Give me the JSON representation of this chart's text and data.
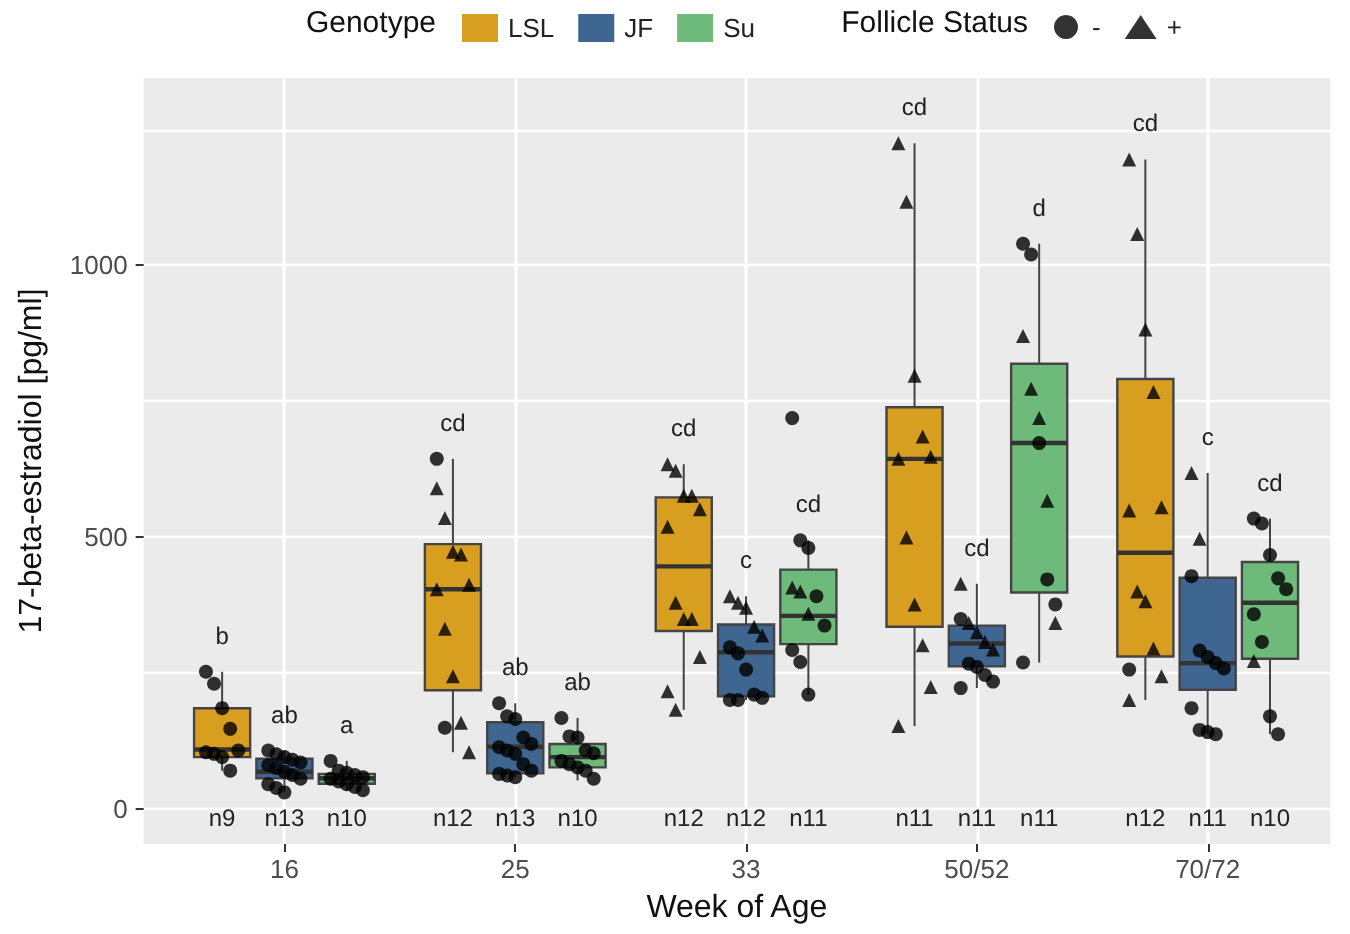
{
  "chart_data": {
    "type": "box",
    "xlabel": "Week of Age",
    "ylabel": "17-beta-estradiol [pg/ml]",
    "legend_title": [
      "Genotype",
      "Follicle Status"
    ],
    "legend": "top",
    "grid": true,
    "categories": [
      "16",
      "25",
      "33",
      "50/52",
      "70/72"
    ],
    "ylim": [
      -65,
      1345
    ],
    "yticks": [
      0,
      {
        "value": 250,
        "label": null
      },
      500,
      {
        "value": 750,
        "label": null
      },
      1000,
      {
        "value": 1250,
        "label": null
      }
    ],
    "series": [
      {
        "name": "LSL",
        "color": "#d89e20",
        "boxes": [
          {
            "low": 70,
            "q1": 95,
            "median": 109,
            "q3": 185,
            "high": 252
          },
          {
            "low": 104,
            "q1": 218,
            "median": 404,
            "q3": 487,
            "high": 644
          },
          {
            "low": 182,
            "q1": 327,
            "median": 446,
            "q3": 573,
            "high": 634
          },
          {
            "low": 152,
            "q1": 335,
            "median": 644,
            "q3": 739,
            "high": 1225
          },
          {
            "low": 200,
            "q1": 280,
            "median": 471,
            "q3": 791,
            "high": 1195
          }
        ]
      },
      {
        "name": "JF",
        "color": "#3f6591",
        "boxes": [
          {
            "low": 30,
            "q1": 56,
            "median": 68,
            "q3": 92,
            "high": 107
          },
          {
            "low": 58,
            "q1": 65,
            "median": 114,
            "q3": 159,
            "high": 194
          },
          {
            "low": 200,
            "q1": 207,
            "median": 288,
            "q3": 339,
            "high": 391
          },
          {
            "low": 222,
            "q1": 262,
            "median": 304,
            "q3": 337,
            "high": 414
          },
          {
            "low": 137,
            "q1": 219,
            "median": 268,
            "q3": 425,
            "high": 618
          }
        ]
      },
      {
        "name": "Su",
        "color": "#6dba7a",
        "boxes": [
          {
            "low": 34,
            "q1": 46,
            "median": 56,
            "q3": 64,
            "high": 88
          },
          {
            "low": 52,
            "q1": 76,
            "median": 95,
            "q3": 119,
            "high": 167
          },
          {
            "low": 210,
            "q1": 303,
            "median": 355,
            "q3": 440,
            "high": 494
          },
          {
            "low": 269,
            "q1": 398,
            "median": 673,
            "q3": 819,
            "high": 1040
          },
          {
            "low": 137,
            "q1": 276,
            "median": 379,
            "q3": 454,
            "high": 534
          }
        ]
      },
      {
        "name": "-",
        "color": "#000000",
        "type": "scatter",
        "marker": "circle",
        "x": [
          "16",
          "16",
          "16",
          "16",
          "16",
          "16",
          "16",
          "16",
          "16",
          "25",
          "25",
          "70/72"
        ],
        "values": [
          252,
          230,
          185,
          147,
          107,
          104,
          101,
          95,
          70,
          644,
          149,
          256
        ]
      },
      {
        "name": "+",
        "color": "#000000",
        "type": "scatter",
        "marker": "triangle",
        "x": [
          "25",
          "25",
          "25",
          "25",
          "25",
          "25",
          "25",
          "25",
          "25",
          "25",
          "33",
          "33",
          "33",
          "33",
          "33",
          "33",
          "33",
          "33",
          "33",
          "33",
          "33",
          "33",
          "50/52",
          "50/52",
          "50/52",
          "50/52",
          "50/52",
          "50/52",
          "50/52",
          "50/52",
          "50/52",
          "50/52",
          "50/52",
          "70/72",
          "70/72",
          "70/72",
          "70/72",
          "70/72",
          "70/72",
          "70/72",
          "70/72",
          "70/72",
          "70/72",
          "70/72"
        ],
        "values": [
          590,
          535,
          473,
          468,
          412,
          404,
          331,
          244,
          158,
          104,
          634,
          622,
          576,
          576,
          551,
          519,
          379,
          349,
          349,
          279,
          216,
          182,
          1225,
          1117,
          797,
          685,
          648,
          644,
          499,
          376,
          301,
          224,
          152,
          1195,
          1058,
          882,
          767,
          555,
          549,
          400,
          382,
          295,
          244,
          200
        ]
      },
      {
        "color": "#000000",
        "type": "scatter",
        "marker": "circle",
        "x": [
          "16",
          "16",
          "16",
          "16",
          "16",
          "16",
          "16",
          "16",
          "16",
          "16",
          "16",
          "16",
          "16",
          "25",
          "25",
          "25",
          "25",
          "25",
          "25",
          "25",
          "25",
          "25",
          "25",
          "25",
          "25",
          "25",
          "33",
          "33",
          "33",
          "33",
          "33",
          "33",
          "33",
          "50/52",
          "50/52",
          "50/52",
          "50/52",
          "50/52",
          "50/52",
          "70/72",
          "70/72",
          "70/72",
          "70/72",
          "70/72",
          "70/72",
          "70/72",
          "70/72",
          "70/72"
        ],
        "values": [
          107,
          100,
          95,
          90,
          85,
          80,
          75,
          68,
          62,
          55,
          45,
          38,
          30,
          194,
          170,
          165,
          131,
          119,
          113,
          107,
          101,
          82,
          70,
          64,
          61,
          58,
          297,
          286,
          256,
          210,
          204,
          200,
          200,
          349,
          267,
          261,
          246,
          234,
          222,
          428,
          291,
          279,
          268,
          258,
          185,
          145,
          141,
          137
        ]
      },
      {
        "color": "#000000",
        "type": "scatter",
        "marker": "triangle",
        "x": [
          "33",
          "33",
          "33",
          "33",
          "33",
          "50/52",
          "50/52",
          "50/52",
          "50/52",
          "50/52",
          "70/72",
          "70/72"
        ],
        "values": [
          391,
          379,
          370,
          335,
          319,
          414,
          342,
          325,
          307,
          293,
          618,
          497
        ]
      },
      {
        "color": "#000000",
        "type": "scatter",
        "marker": "circle",
        "x": [
          "16",
          "16",
          "16",
          "16",
          "16",
          "16",
          "16",
          "16",
          "16",
          "16",
          "25",
          "25",
          "25",
          "25",
          "25",
          "25",
          "25",
          "25",
          "25",
          "25",
          "33",
          "33",
          "33",
          "33",
          "33",
          "33",
          "33",
          "33",
          "50/52",
          "50/52",
          "50/52",
          "50/52",
          "50/52",
          "50/52",
          "70/72",
          "70/72",
          "70/72",
          "70/72",
          "70/72",
          "70/72",
          "70/72",
          "70/72",
          "70/72"
        ],
        "values": [
          88,
          70,
          66,
          62,
          58,
          55,
          50,
          45,
          40,
          34,
          167,
          133,
          131,
          107,
          102,
          88,
          82,
          76,
          70,
          55,
          719,
          494,
          480,
          391,
          337,
          292,
          270,
          210,
          1040,
          1020,
          673,
          422,
          376,
          269,
          534,
          525,
          467,
          424,
          404,
          358,
          307,
          170,
          137
        ]
      },
      {
        "color": "#000000",
        "type": "scatter",
        "marker": "triangle",
        "x": [
          "33",
          "33",
          "33",
          "50/52",
          "50/52",
          "50/52",
          "50/52",
          "50/52",
          "70/72"
        ],
        "values": [
          407,
          400,
          359,
          870,
          773,
          719,
          567,
          342,
          272
        ]
      }
    ],
    "annotations": [
      "b",
      "ab",
      "a",
      "n9",
      "n13",
      "n10",
      "cd",
      "ab",
      "ab",
      "n12",
      "n13",
      "n10",
      "cd",
      "c",
      "cd",
      "n12",
      "n12",
      "n11",
      "cd",
      "cd",
      "d",
      "n11",
      "n11",
      "n11",
      "cd",
      "c",
      "cd",
      "n12",
      "n11",
      "n10"
    ]
  }
}
